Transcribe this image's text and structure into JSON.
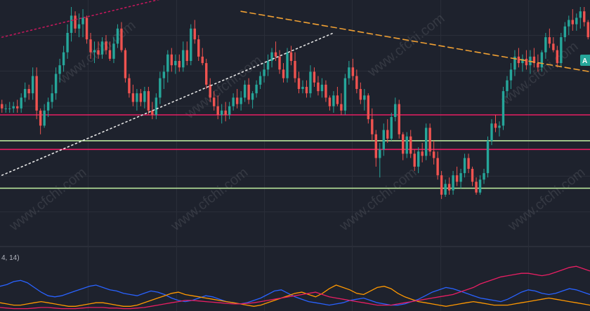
{
  "colors": {
    "background": "#1e222d",
    "grid": "#2a2e39",
    "up": "#26a69a",
    "down": "#ef5350",
    "resistance": "#e91e63",
    "support": "#b7e39a",
    "trend_down": "#f0a033",
    "trend_up": "#e6e6e6",
    "trend_upper": "#c2185b",
    "osc_blue": "#2962ff",
    "osc_orange": "#ff9800",
    "osc_magenta": "#e91e63",
    "price_tag": "#26a69a"
  },
  "oscillator": {
    "label": "4, 14)"
  },
  "price_tag": {
    "label": "A"
  },
  "watermark": "www.cfchi.com",
  "chart_data": {
    "type": "candlestick",
    "price_range": [
      0,
      100
    ],
    "candles": [
      [
        55,
        57,
        51,
        53
      ],
      [
        53,
        55,
        51,
        53
      ],
      [
        53,
        56,
        51,
        53
      ],
      [
        53,
        56,
        51,
        54
      ],
      [
        54,
        57,
        51,
        53
      ],
      [
        53,
        60,
        51,
        58
      ],
      [
        58,
        65,
        56,
        62
      ],
      [
        62,
        64,
        57,
        60
      ],
      [
        60,
        72,
        57,
        68
      ],
      [
        68,
        72,
        48,
        52
      ],
      [
        52,
        53,
        41,
        45
      ],
      [
        45,
        55,
        44,
        52
      ],
      [
        52,
        58,
        49,
        56
      ],
      [
        56,
        64,
        53,
        60
      ],
      [
        60,
        72,
        57,
        69
      ],
      [
        69,
        76,
        65,
        73
      ],
      [
        73,
        82,
        70,
        79
      ],
      [
        79,
        92,
        76,
        88
      ],
      [
        88,
        100,
        84,
        96
      ],
      [
        96,
        98,
        88,
        90
      ],
      [
        90,
        97,
        86,
        92
      ],
      [
        92,
        99,
        86,
        95
      ],
      [
        95,
        96,
        83,
        85
      ],
      [
        85,
        88,
        76,
        79
      ],
      [
        79,
        84,
        74,
        80
      ],
      [
        80,
        84,
        76,
        78
      ],
      [
        78,
        86,
        76,
        84
      ],
      [
        84,
        87,
        78,
        80
      ],
      [
        80,
        84,
        75,
        76
      ],
      [
        76,
        86,
        74,
        83
      ],
      [
        83,
        92,
        81,
        90
      ],
      [
        90,
        93,
        79,
        80
      ],
      [
        80,
        81,
        65,
        67
      ],
      [
        67,
        69,
        58,
        60
      ],
      [
        60,
        64,
        54,
        56
      ],
      [
        56,
        62,
        52,
        60
      ],
      [
        60,
        62,
        54,
        56
      ],
      [
        56,
        63,
        53,
        61
      ],
      [
        61,
        63,
        50,
        52
      ],
      [
        52,
        56,
        48,
        50
      ],
      [
        50,
        60,
        48,
        58
      ],
      [
        58,
        70,
        55,
        67
      ],
      [
        67,
        73,
        62,
        70
      ],
      [
        70,
        80,
        65,
        78
      ],
      [
        78,
        81,
        70,
        73
      ],
      [
        73,
        78,
        69,
        75
      ],
      [
        75,
        78,
        70,
        72
      ],
      [
        72,
        84,
        70,
        80
      ],
      [
        80,
        84,
        73,
        75
      ],
      [
        75,
        92,
        73,
        90
      ],
      [
        90,
        94,
        83,
        85
      ],
      [
        85,
        87,
        75,
        77
      ],
      [
        77,
        81,
        73,
        74
      ],
      [
        74,
        76,
        62,
        64
      ],
      [
        64,
        67,
        56,
        58
      ],
      [
        58,
        61,
        52,
        54
      ],
      [
        54,
        59,
        48,
        50
      ],
      [
        50,
        55,
        46,
        52
      ],
      [
        52,
        56,
        47,
        50
      ],
      [
        50,
        56,
        48,
        54
      ],
      [
        54,
        60,
        52,
        58
      ],
      [
        58,
        62,
        53,
        55
      ],
      [
        55,
        61,
        52,
        58
      ],
      [
        58,
        66,
        56,
        64
      ],
      [
        64,
        67,
        55,
        57
      ],
      [
        57,
        61,
        53,
        60
      ],
      [
        60,
        66,
        58,
        64
      ],
      [
        64,
        70,
        62,
        68
      ],
      [
        68,
        74,
        65,
        71
      ],
      [
        71,
        78,
        68,
        75
      ],
      [
        75,
        81,
        72,
        79
      ],
      [
        79,
        84,
        75,
        77
      ],
      [
        77,
        80,
        69,
        71
      ],
      [
        71,
        74,
        65,
        67
      ],
      [
        67,
        81,
        65,
        79
      ],
      [
        79,
        82,
        73,
        75
      ],
      [
        75,
        79,
        65,
        67
      ],
      [
        67,
        70,
        60,
        62
      ],
      [
        62,
        66,
        60,
        63
      ],
      [
        63,
        66,
        58,
        60
      ],
      [
        60,
        73,
        58,
        70
      ],
      [
        70,
        72,
        63,
        65
      ],
      [
        65,
        68,
        59,
        61
      ],
      [
        61,
        67,
        58,
        64
      ],
      [
        64,
        66,
        56,
        58
      ],
      [
        58,
        59,
        52,
        54
      ],
      [
        54,
        61,
        51,
        59
      ],
      [
        59,
        63,
        54,
        55
      ],
      [
        55,
        60,
        50,
        52
      ],
      [
        52,
        69,
        50,
        67
      ],
      [
        67,
        75,
        64,
        72
      ],
      [
        72,
        76,
        66,
        68
      ],
      [
        68,
        71,
        60,
        62
      ],
      [
        62,
        65,
        55,
        57
      ],
      [
        57,
        62,
        52,
        59
      ],
      [
        59,
        60,
        46,
        48
      ],
      [
        48,
        53,
        38,
        41
      ],
      [
        41,
        43,
        26,
        30
      ],
      [
        30,
        37,
        21,
        34
      ],
      [
        34,
        46,
        31,
        43
      ],
      [
        43,
        48,
        37,
        39
      ],
      [
        39,
        51,
        38,
        49
      ],
      [
        49,
        58,
        47,
        55
      ],
      [
        55,
        57,
        39,
        41
      ],
      [
        41,
        42,
        29,
        32
      ],
      [
        32,
        42,
        30,
        40
      ],
      [
        40,
        43,
        30,
        32
      ],
      [
        32,
        34,
        24,
        26
      ],
      [
        26,
        35,
        23,
        33
      ],
      [
        33,
        37,
        28,
        31
      ],
      [
        31,
        46,
        29,
        44
      ],
      [
        44,
        46,
        31,
        33
      ],
      [
        33,
        38,
        27,
        30
      ],
      [
        30,
        33,
        20,
        22
      ],
      [
        22,
        24,
        11,
        13
      ],
      [
        13,
        20,
        12,
        18
      ],
      [
        18,
        21,
        13,
        15
      ],
      [
        15,
        24,
        13,
        22
      ],
      [
        22,
        26,
        17,
        19
      ],
      [
        19,
        25,
        16,
        23
      ],
      [
        23,
        32,
        21,
        30
      ],
      [
        30,
        32,
        23,
        25
      ],
      [
        25,
        26,
        17,
        19
      ],
      [
        19,
        21,
        13,
        14
      ],
      [
        14,
        22,
        13,
        20
      ],
      [
        20,
        25,
        18,
        23
      ],
      [
        23,
        40,
        21,
        38
      ],
      [
        38,
        48,
        36,
        46
      ],
      [
        46,
        50,
        42,
        44
      ],
      [
        44,
        47,
        40,
        45
      ],
      [
        45,
        63,
        43,
        61
      ],
      [
        61,
        68,
        58,
        66
      ],
      [
        66,
        74,
        62,
        71
      ],
      [
        71,
        80,
        68,
        77
      ],
      [
        77,
        81,
        72,
        74
      ],
      [
        74,
        78,
        70,
        76
      ],
      [
        76,
        80,
        71,
        73
      ],
      [
        73,
        80,
        69,
        77
      ],
      [
        77,
        81,
        72,
        74
      ],
      [
        74,
        78,
        70,
        72
      ],
      [
        72,
        80,
        70,
        79
      ],
      [
        79,
        88,
        76,
        86
      ],
      [
        86,
        90,
        81,
        83
      ],
      [
        83,
        86,
        79,
        80
      ],
      [
        80,
        82,
        72,
        74
      ],
      [
        74,
        88,
        72,
        86
      ],
      [
        86,
        93,
        84,
        91
      ],
      [
        91,
        96,
        87,
        94
      ],
      [
        94,
        99,
        89,
        92
      ],
      [
        92,
        97,
        89,
        95
      ],
      [
        95,
        100,
        90,
        98
      ],
      [
        98,
        100,
        91,
        93
      ],
      [
        93,
        94,
        85,
        86
      ]
    ],
    "horizontal_lines": [
      {
        "name": "resistance-upper",
        "price": 50,
        "color": "#e91e63"
      },
      {
        "name": "support-upper",
        "price": 38,
        "color": "#b7e39a"
      },
      {
        "name": "resistance-lower",
        "price": 34,
        "color": "#e91e63"
      },
      {
        "name": "support-lower",
        "price": 16,
        "color": "#b7e39a"
      }
    ],
    "trendlines": [
      {
        "name": "downtrend-line",
        "style": "dashed",
        "color": "#f0a033",
        "from": [
          62,
          98
        ],
        "to": [
          168,
          70
        ]
      },
      {
        "name": "uptrend-line",
        "style": "dotted",
        "color": "#e6e6e6",
        "from": [
          0,
          22
        ],
        "to": [
          86,
          88
        ]
      },
      {
        "name": "upper-channel-line",
        "style": "dotted",
        "color": "#c2185b",
        "from": [
          0,
          86
        ],
        "to": [
          42,
          104
        ]
      }
    ],
    "oscillator": {
      "range": [
        0,
        100
      ],
      "series": [
        {
          "color": "#2962ff",
          "values": [
            42,
            45,
            50,
            52,
            48,
            40,
            32,
            26,
            24,
            26,
            30,
            34,
            38,
            42,
            44,
            40,
            36,
            34,
            30,
            28,
            26,
            30,
            34,
            32,
            28,
            22,
            18,
            16,
            18,
            22,
            26,
            24,
            20,
            16,
            14,
            12,
            14,
            18,
            22,
            28,
            34,
            36,
            30,
            24,
            20,
            16,
            14,
            12,
            10,
            12,
            14,
            18,
            20,
            22,
            18,
            14,
            12,
            10,
            10,
            12,
            16,
            20,
            26,
            32,
            36,
            40,
            38,
            34,
            30,
            26,
            22,
            20,
            18,
            16,
            20,
            26,
            32,
            36,
            34,
            30,
            28,
            30,
            34,
            38,
            36,
            32,
            28
          ]
        },
        {
          "color": "#ff9800",
          "values": [
            14,
            12,
            10,
            10,
            12,
            14,
            16,
            14,
            12,
            10,
            8,
            8,
            10,
            12,
            14,
            14,
            12,
            10,
            8,
            8,
            10,
            14,
            18,
            22,
            26,
            30,
            32,
            28,
            26,
            24,
            22,
            20,
            18,
            16,
            14,
            12,
            10,
            8,
            10,
            14,
            18,
            22,
            26,
            30,
            32,
            28,
            24,
            30,
            38,
            44,
            40,
            36,
            30,
            28,
            34,
            40,
            42,
            38,
            30,
            24,
            20,
            16,
            14,
            12,
            10,
            8,
            10,
            12,
            14,
            16,
            14,
            12,
            10,
            10,
            10,
            12,
            14,
            16,
            18,
            20,
            22,
            20,
            18,
            16,
            14,
            12,
            10
          ]
        },
        {
          "color": "#e91e63",
          "values": [
            6,
            5,
            4,
            4,
            4,
            5,
            6,
            6,
            5,
            4,
            4,
            4,
            5,
            6,
            6,
            6,
            5,
            5,
            4,
            4,
            5,
            6,
            8,
            10,
            12,
            14,
            16,
            18,
            18,
            17,
            16,
            15,
            14,
            13,
            12,
            12,
            13,
            14,
            16,
            18,
            20,
            22,
            24,
            26,
            28,
            30,
            32,
            28,
            24,
            22,
            20,
            18,
            16,
            14,
            12,
            10,
            10,
            10,
            12,
            14,
            16,
            18,
            20,
            22,
            24,
            26,
            28,
            32,
            36,
            40,
            46,
            50,
            54,
            58,
            60,
            62,
            64,
            64,
            62,
            60,
            62,
            66,
            70,
            74,
            76,
            72,
            68
          ]
        }
      ]
    }
  }
}
